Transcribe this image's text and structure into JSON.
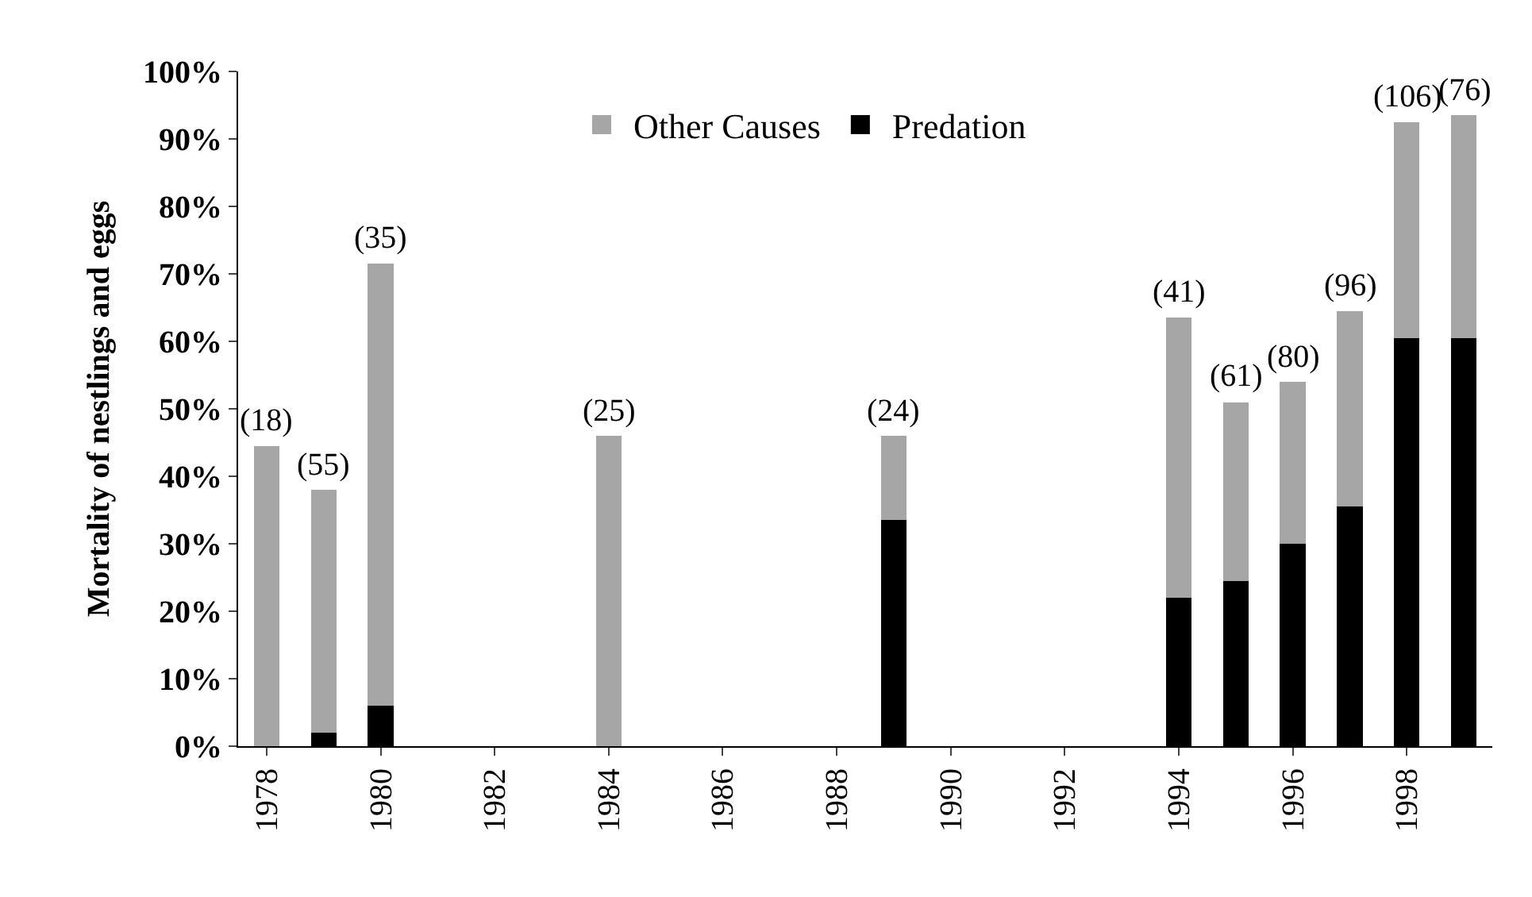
{
  "chart_data": {
    "type": "bar",
    "stacked": true,
    "ylabel": "Mortality of nestlings and eggs",
    "x": [
      1978,
      1979,
      1980,
      1984,
      1989,
      1994,
      1995,
      1996,
      1997,
      1998,
      1999
    ],
    "series": [
      {
        "name": "Predation",
        "color": "#000000",
        "values": [
          0,
          2,
          6,
          0,
          33.5,
          22,
          24.5,
          30,
          35.5,
          60.5,
          60.5
        ]
      },
      {
        "name": "Other Causes",
        "color": "#a6a6a6",
        "values": [
          44.5,
          36,
          65.5,
          46,
          12.5,
          41.5,
          26.5,
          24,
          29,
          32,
          33
        ]
      }
    ],
    "xlim": [
      1977.5,
      1999.5
    ],
    "xticks": [
      1978,
      1980,
      1982,
      1984,
      1986,
      1988,
      1990,
      1992,
      1994,
      1996,
      1998
    ],
    "ylim": [
      0,
      100
    ],
    "yticks": [
      {
        "value": 0,
        "label": "0%"
      },
      {
        "value": 10,
        "label": "10%"
      },
      {
        "value": 20,
        "label": "20%"
      },
      {
        "value": 30,
        "label": "30%"
      },
      {
        "value": 40,
        "label": "40%"
      },
      {
        "value": 50,
        "label": "50%"
      },
      {
        "value": 60,
        "label": "60%"
      },
      {
        "value": 70,
        "label": "70%"
      },
      {
        "value": 80,
        "label": "80%"
      },
      {
        "value": 90,
        "label": "90%"
      },
      {
        "value": 100,
        "label": "100%"
      }
    ],
    "annotations": [
      {
        "text": "(18)",
        "x": 1978,
        "y": 44.5
      },
      {
        "text": "(55)",
        "x": 1979,
        "y": 38
      },
      {
        "text": "(35)",
        "x": 1980,
        "y": 71.5
      },
      {
        "text": "(25)",
        "x": 1984,
        "y": 46
      },
      {
        "text": "(24)",
        "x": 1989,
        "y": 46
      },
      {
        "text": "(41)",
        "x": 1994,
        "y": 63.5
      },
      {
        "text": "(61)",
        "x": 1995,
        "y": 51
      },
      {
        "text": "(80)",
        "x": 1996,
        "y": 54
      },
      {
        "text": "(96)",
        "x": 1997,
        "y": 64.5
      },
      {
        "text": "(106)",
        "x": 1998,
        "y": 92.5
      },
      {
        "text": "(76)",
        "x": 1999,
        "y": 93.5
      }
    ],
    "legend": "top"
  }
}
